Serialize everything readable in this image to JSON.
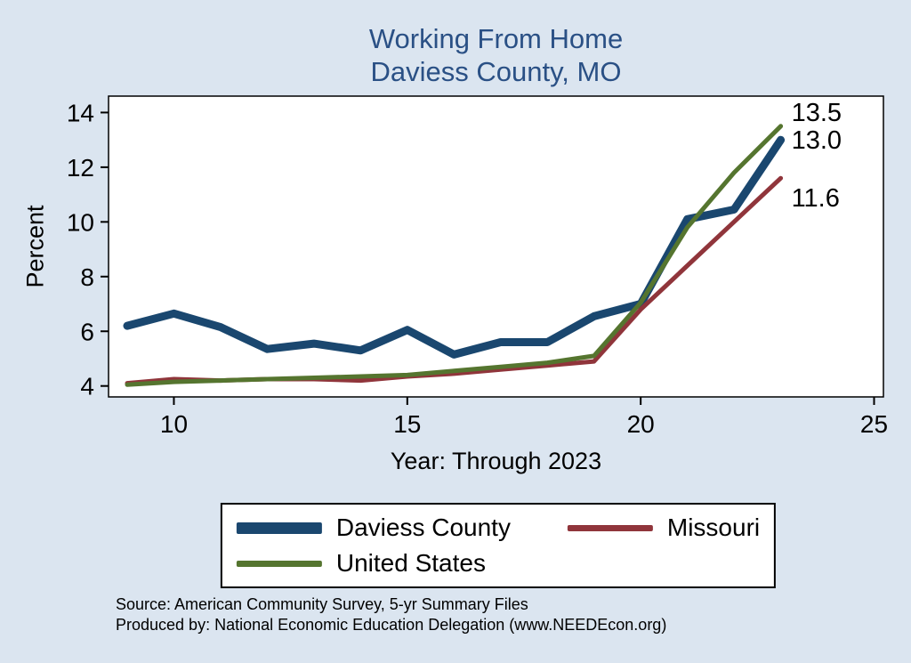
{
  "title": {
    "line1": "Working From Home",
    "line2": "Daviess County, MO"
  },
  "chart_data": {
    "type": "line",
    "title": "Working From Home — Daviess County, MO",
    "xlabel": "Year: Through 2023",
    "ylabel": "Percent",
    "xlim": [
      8.6,
      25.2
    ],
    "ylim": [
      3.6,
      14.6
    ],
    "xticks": [
      10,
      15,
      20,
      25
    ],
    "yticks": [
      4,
      6,
      8,
      10,
      12,
      14
    ],
    "grid": false,
    "legend_position": "bottom",
    "x": [
      9,
      10,
      11,
      12,
      13,
      14,
      15,
      16,
      17,
      18,
      19,
      20,
      21,
      22,
      23
    ],
    "series": [
      {
        "name": "Daviess County",
        "color": "#1A476F",
        "width": 9,
        "end_label": "13.0",
        "values": [
          6.2,
          6.65,
          6.15,
          5.35,
          5.55,
          5.3,
          6.05,
          5.15,
          5.6,
          5.6,
          6.55,
          7.0,
          10.1,
          10.45,
          13.0
        ]
      },
      {
        "name": "Missouri",
        "color": "#90353B",
        "width": 5,
        "end_label": "11.6",
        "values": [
          4.1,
          4.25,
          4.2,
          4.25,
          4.25,
          4.2,
          4.35,
          4.45,
          4.6,
          4.75,
          4.9,
          6.8,
          8.4,
          10.0,
          11.6
        ]
      },
      {
        "name": "United States",
        "color": "#55752F",
        "width": 5,
        "end_label": "13.5",
        "values": [
          4.05,
          4.15,
          4.2,
          4.25,
          4.3,
          4.35,
          4.4,
          4.55,
          4.7,
          4.85,
          5.1,
          7.05,
          9.8,
          11.8,
          13.5
        ]
      }
    ]
  },
  "footer": {
    "line1": "Source: American Community Survey, 5-yr Summary Files",
    "line2": "Produced by: National Economic Education Delegation (www.NEEDEcon.org)"
  }
}
